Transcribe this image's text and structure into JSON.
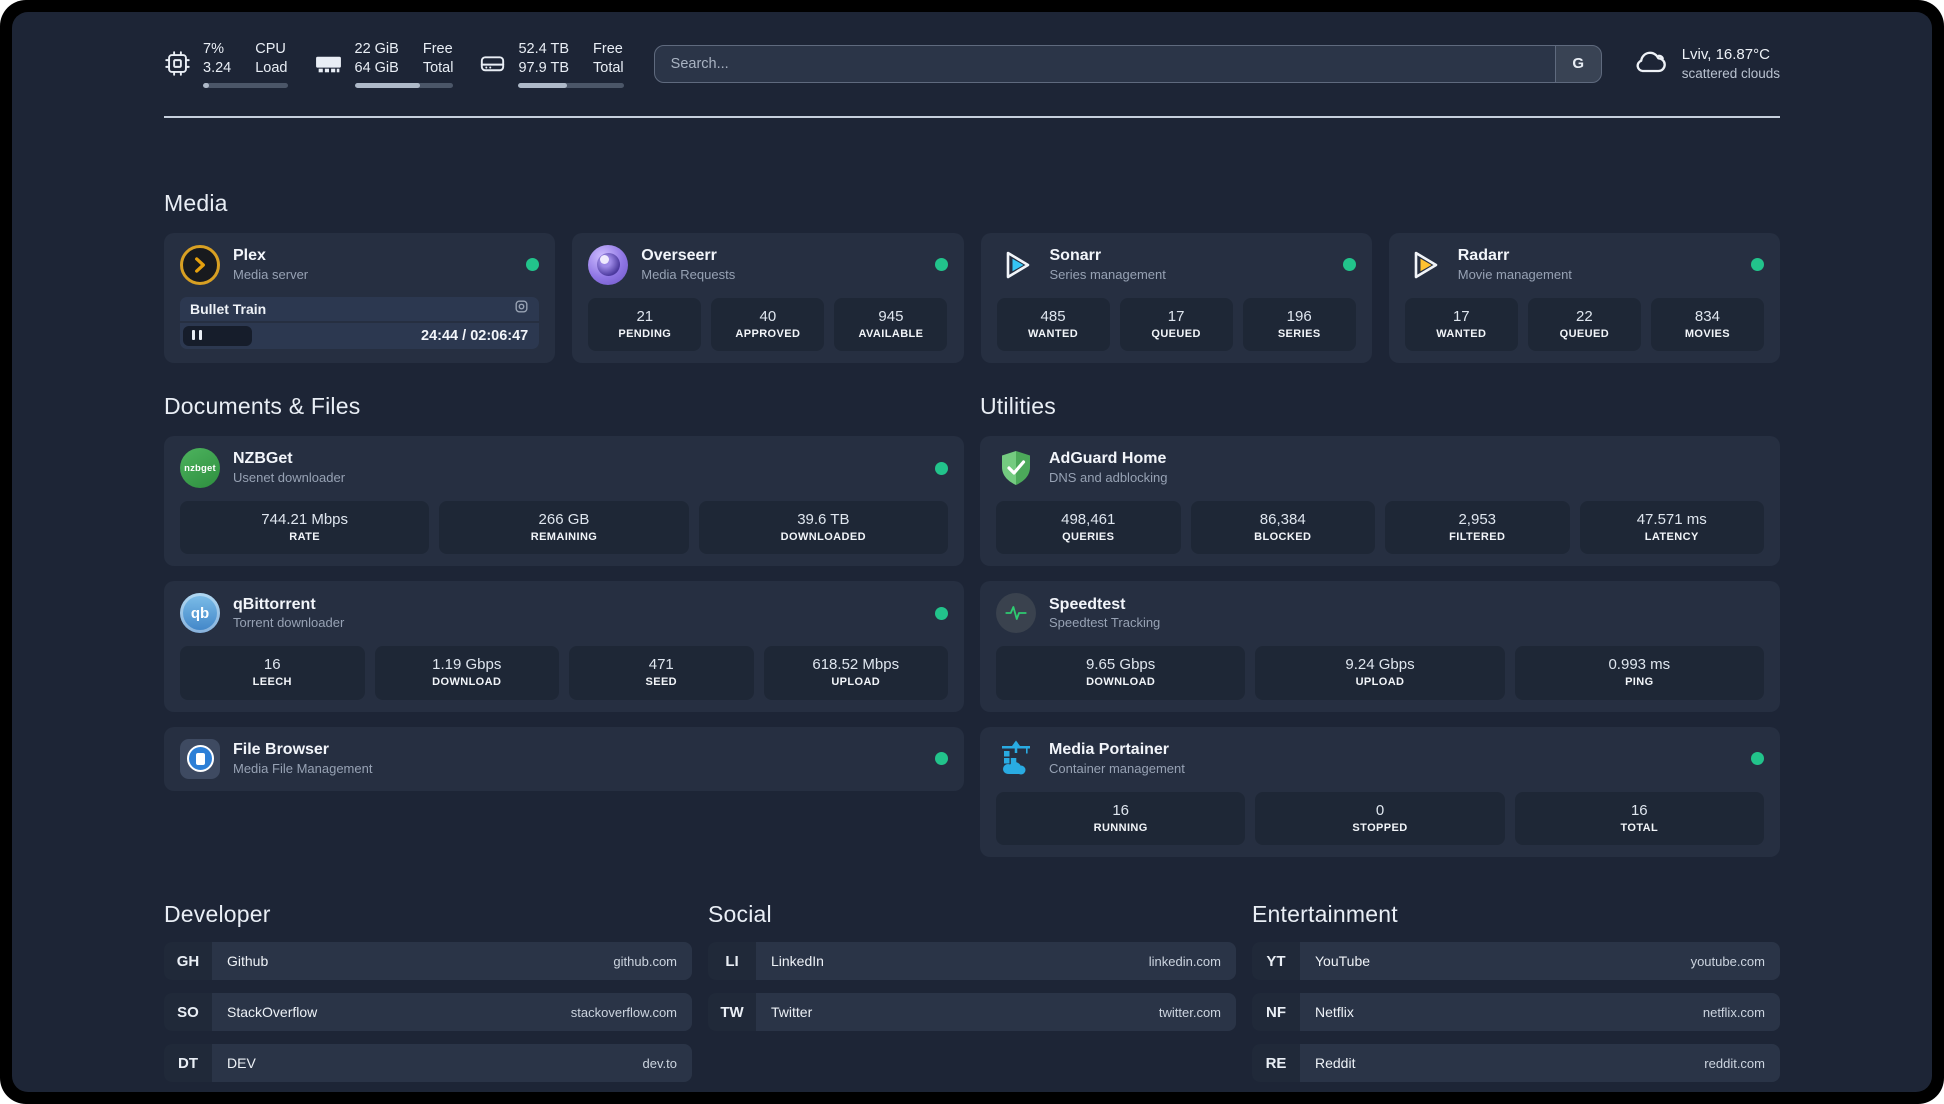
{
  "colors": {
    "status_green": "#22c38b",
    "plex_amber": "#e5a00d",
    "sonarr_blue": "#35c5f4",
    "radarr_amber": "#ffc230",
    "adguard_green": "#57b264",
    "speedtest_green": "#2ecc71",
    "portainer_blue": "#29abe2"
  },
  "topbar": {
    "stats": [
      {
        "icon": "cpu-icon",
        "values": [
          "7%",
          "3.24"
        ],
        "labels": [
          "CPU",
          "Load"
        ],
        "progress": 7
      },
      {
        "icon": "ram-icon",
        "values": [
          "22 GiB",
          "64 GiB"
        ],
        "labels": [
          "Free",
          "Total"
        ],
        "progress": 66
      },
      {
        "icon": "disk-icon",
        "values": [
          "52.4 TB",
          "97.9 TB"
        ],
        "labels": [
          "Free",
          "Total"
        ],
        "progress": 46
      }
    ],
    "search": {
      "placeholder": "Search...",
      "engine_button": "G"
    },
    "weather": {
      "location": "Lviv, 16.87°C",
      "condition": "scattered clouds"
    }
  },
  "media": {
    "title": "Media",
    "plex": {
      "title": "Plex",
      "subtitle": "Media server",
      "now_playing": "Bullet Train",
      "time": "24:44 / 02:06:47",
      "progress": 19.5
    },
    "overseerr": {
      "title": "Overseerr",
      "subtitle": "Media Requests",
      "stats": [
        {
          "value": "21",
          "label": "PENDING"
        },
        {
          "value": "40",
          "label": "APPROVED"
        },
        {
          "value": "945",
          "label": "AVAILABLE"
        }
      ]
    },
    "sonarr": {
      "title": "Sonarr",
      "subtitle": "Series management",
      "stats": [
        {
          "value": "485",
          "label": "WANTED"
        },
        {
          "value": "17",
          "label": "QUEUED"
        },
        {
          "value": "196",
          "label": "SERIES"
        }
      ]
    },
    "radarr": {
      "title": "Radarr",
      "subtitle": "Movie management",
      "stats": [
        {
          "value": "17",
          "label": "WANTED"
        },
        {
          "value": "22",
          "label": "QUEUED"
        },
        {
          "value": "834",
          "label": "MOVIES"
        }
      ]
    }
  },
  "documents": {
    "title": "Documents & Files",
    "nzbget": {
      "title": "NZBGet",
      "subtitle": "Usenet downloader",
      "icon_text": "nzbget",
      "stats": [
        {
          "value": "744.21 Mbps",
          "label": "RATE"
        },
        {
          "value": "266 GB",
          "label": "REMAINING"
        },
        {
          "value": "39.6 TB",
          "label": "DOWNLOADED"
        }
      ]
    },
    "qbittorrent": {
      "title": "qBittorrent",
      "subtitle": "Torrent downloader",
      "icon_text": "qb",
      "stats": [
        {
          "value": "16",
          "label": "LEECH"
        },
        {
          "value": "1.19 Gbps",
          "label": "DOWNLOAD"
        },
        {
          "value": "471",
          "label": "SEED"
        },
        {
          "value": "618.52 Mbps",
          "label": "UPLOAD"
        }
      ]
    },
    "filebrowser": {
      "title": "File Browser",
      "subtitle": "Media File Management"
    }
  },
  "utilities": {
    "title": "Utilities",
    "adguard": {
      "title": "AdGuard Home",
      "subtitle": "DNS and adblocking",
      "stats": [
        {
          "value": "498,461",
          "label": "QUERIES"
        },
        {
          "value": "86,384",
          "label": "BLOCKED"
        },
        {
          "value": "2,953",
          "label": "FILTERED"
        },
        {
          "value": "47.571 ms",
          "label": "LATENCY"
        }
      ]
    },
    "speedtest": {
      "title": "Speedtest",
      "subtitle": "Speedtest Tracking",
      "stats": [
        {
          "value": "9.65 Gbps",
          "label": "DOWNLOAD"
        },
        {
          "value": "9.24 Gbps",
          "label": "UPLOAD"
        },
        {
          "value": "0.993 ms",
          "label": "PING"
        }
      ]
    },
    "portainer": {
      "title": "Media Portainer",
      "subtitle": "Container management",
      "stats": [
        {
          "value": "16",
          "label": "RUNNING"
        },
        {
          "value": "0",
          "label": "STOPPED"
        },
        {
          "value": "16",
          "label": "TOTAL"
        }
      ]
    }
  },
  "bookmarks": {
    "developer": {
      "title": "Developer",
      "items": [
        {
          "abbr": "GH",
          "name": "Github",
          "url": "github.com"
        },
        {
          "abbr": "SO",
          "name": "StackOverflow",
          "url": "stackoverflow.com"
        },
        {
          "abbr": "DT",
          "name": "DEV",
          "url": "dev.to"
        }
      ]
    },
    "social": {
      "title": "Social",
      "items": [
        {
          "abbr": "LI",
          "name": "LinkedIn",
          "url": "linkedin.com"
        },
        {
          "abbr": "TW",
          "name": "Twitter",
          "url": "twitter.com"
        }
      ]
    },
    "entertainment": {
      "title": "Entertainment",
      "items": [
        {
          "abbr": "YT",
          "name": "YouTube",
          "url": "youtube.com"
        },
        {
          "abbr": "NF",
          "name": "Netflix",
          "url": "netflix.com"
        },
        {
          "abbr": "RE",
          "name": "Reddit",
          "url": "reddit.com"
        }
      ]
    }
  }
}
